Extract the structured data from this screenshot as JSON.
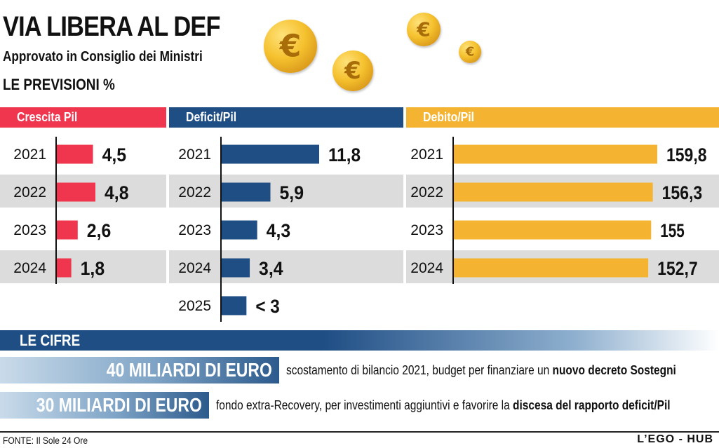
{
  "header": {
    "title": "VIA LIBERA AL DEF",
    "subtitle": "Approvato in Consiglio dei Ministri",
    "section": "LE PREVISIONI %"
  },
  "coin_symbol": "€",
  "colors": {
    "red": "#f0364e",
    "blue": "#1f4e85",
    "gold": "#f4b432",
    "band": "#dcdcdc"
  },
  "chart_data": [
    {
      "type": "bar",
      "title": "Crescita Pil",
      "categories": [
        "2021",
        "2022",
        "2023",
        "2024"
      ],
      "values": [
        4.5,
        4.8,
        2.6,
        1.8
      ],
      "labels": [
        "4,5",
        "4,8",
        "2,6",
        "1,8"
      ]
    },
    {
      "type": "bar",
      "title": "Deficit/Pil",
      "categories": [
        "2021",
        "2022",
        "2023",
        "2024",
        "2025"
      ],
      "values": [
        11.8,
        5.9,
        4.3,
        3.4,
        3
      ],
      "labels": [
        "11,8",
        "5,9",
        "4,3",
        "3,4",
        "< 3"
      ]
    },
    {
      "type": "bar",
      "title": "Debito/Pil",
      "categories": [
        "2021",
        "2022",
        "2023",
        "2024"
      ],
      "values": [
        159.8,
        156.3,
        155,
        152.7
      ],
      "labels": [
        "159,8",
        "156,3",
        "155",
        "152,7"
      ]
    }
  ],
  "cifre": {
    "title": "LE CIFRE",
    "items": [
      {
        "amount": "40 MILIARDI DI EURO",
        "text": "scostamento di bilancio 2021, budget per finanziare un ",
        "bold": "nuovo decreto Sostegni"
      },
      {
        "amount": "30 MILIARDI DI EURO",
        "text": "fondo extra-Recovery, per investimenti aggiuntivi e favorire la ",
        "bold": "discesa del rapporto deficit/Pil"
      }
    ]
  },
  "footer": {
    "source": "FONTE: Il Sole 24 Ore",
    "brand": "L’EGO - HUB"
  }
}
